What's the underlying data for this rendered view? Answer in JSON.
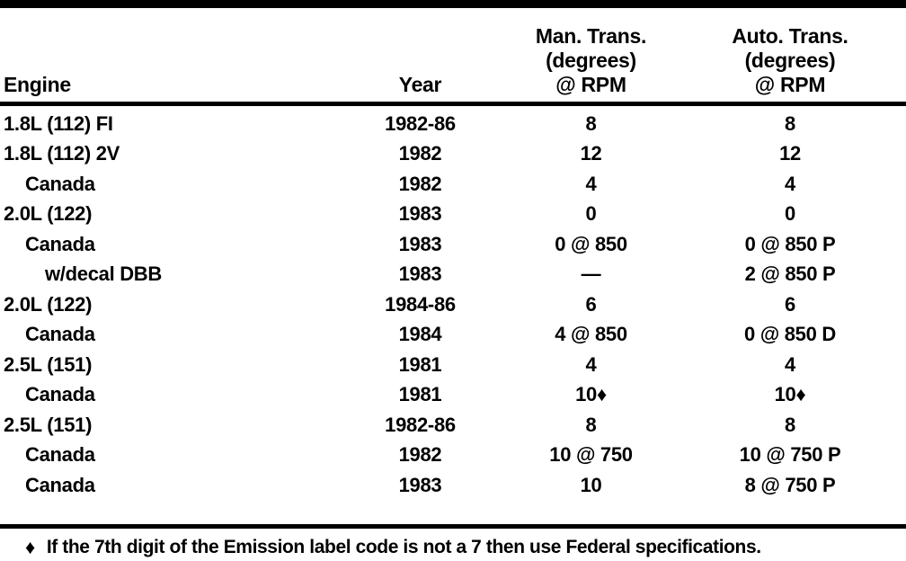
{
  "colors": {
    "text": "#000000",
    "background": "#ffffff",
    "rule": "#000000"
  },
  "table": {
    "header": {
      "engine": "Engine",
      "year": "Year",
      "man_line1": "Man. Trans.",
      "man_line2": "(degrees)",
      "man_line3": "@ RPM",
      "auto_line1": "Auto. Trans.",
      "auto_line2": "(degrees)",
      "auto_line3": "@ RPM"
    },
    "rows": [
      {
        "engine": "1.8L (112) FI",
        "year": "1982-86",
        "man": "8",
        "auto": "8"
      },
      {
        "engine": "1.8L (112) 2V",
        "year": "1982",
        "man": "12",
        "auto": "12"
      },
      {
        "engine": "Canada",
        "year": "1982",
        "man": "4",
        "auto": "4"
      },
      {
        "engine": "2.0L (122)",
        "year": "1983",
        "man": "0",
        "auto": "0"
      },
      {
        "engine": "Canada",
        "year": "1983",
        "man": "0 @ 850",
        "auto": "0 @ 850 P"
      },
      {
        "engine": "w/decal DBB",
        "year": "1983",
        "man": "—",
        "auto": "2 @ 850 P"
      },
      {
        "engine": "2.0L (122)",
        "year": "1984-86",
        "man": "6",
        "auto": "6"
      },
      {
        "engine": "Canada",
        "year": "1984",
        "man": "4 @ 850",
        "auto": "0 @ 850 D"
      },
      {
        "engine": "2.5L (151)",
        "year": "1981",
        "man": "4",
        "auto": "4"
      },
      {
        "engine": "Canada",
        "year": "1981",
        "man": "10♦",
        "auto": "10♦"
      },
      {
        "engine": "2.5L (151)",
        "year": "1982-86",
        "man": "8",
        "auto": "8"
      },
      {
        "engine": "Canada",
        "year": "1982",
        "man": "10 @ 750",
        "auto": "10 @ 750 P"
      },
      {
        "engine": "Canada",
        "year": "1983",
        "man": "10",
        "auto": "8 @ 750 P"
      }
    ]
  },
  "footnote": {
    "symbol": "♦",
    "text": "If the 7th digit of the Emission label code is not a 7 then use Federal specifications."
  }
}
